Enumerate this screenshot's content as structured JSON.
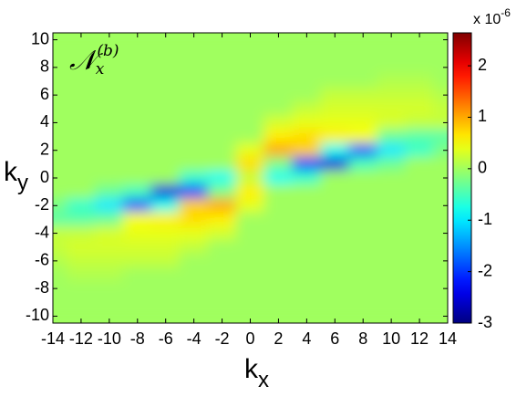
{
  "chart_data": {
    "type": "heatmap",
    "annotation": "𝒩",
    "annotation_sub": "x",
    "annotation_sup": "(b)",
    "xlabel": "k",
    "xlabel_sub": "x",
    "ylabel": "k",
    "ylabel_sub": "y",
    "colorbar_multiplier": "x 10",
    "colorbar_exponent": "-6",
    "colormap": "jet",
    "x": [
      -14,
      -12,
      -10,
      -8,
      -6,
      -4,
      -2,
      0,
      2,
      4,
      6,
      8,
      10,
      12,
      14
    ],
    "y": [
      10,
      9,
      8,
      7,
      6,
      5,
      4,
      3,
      2,
      1,
      0,
      -1,
      -2,
      -3,
      -4,
      -5,
      -6,
      -7,
      -8,
      -9,
      -10
    ],
    "z": [
      [
        0,
        0,
        0,
        0,
        0,
        0,
        0,
        0,
        0,
        0,
        0,
        0,
        0,
        0,
        0
      ],
      [
        0,
        0,
        0,
        0,
        0,
        0,
        0,
        0,
        0,
        0,
        0,
        0,
        0,
        0,
        0
      ],
      [
        0,
        0,
        0,
        0,
        0,
        0,
        0,
        0,
        0,
        0,
        0,
        0,
        0,
        0,
        0
      ],
      [
        0,
        0,
        0,
        0,
        0,
        0,
        0,
        0,
        0,
        0,
        0,
        0,
        0.1,
        0.1,
        0
      ],
      [
        0,
        0,
        0,
        0,
        0,
        0,
        0,
        0,
        0,
        0,
        0.2,
        0.2,
        0.2,
        0.2,
        0.1
      ],
      [
        0,
        0,
        0,
        0,
        0,
        0,
        0,
        0,
        0,
        0.2,
        0.3,
        0.3,
        0.3,
        0.3,
        0.2
      ],
      [
        0,
        0,
        0,
        0,
        0,
        0,
        0,
        0,
        0.3,
        0.4,
        0.4,
        0.4,
        0.3,
        0.2,
        0.2
      ],
      [
        0,
        0,
        0,
        0,
        0,
        0,
        0,
        0,
        0.6,
        0.7,
        0.6,
        0.5,
        -0.3,
        -0.4,
        -0.4
      ],
      [
        0,
        0,
        0,
        0,
        0,
        0,
        0,
        0.4,
        1.0,
        0.8,
        -0.8,
        -1.8,
        -1.0,
        -0.6,
        -0.2
      ],
      [
        0,
        0,
        0,
        0,
        0,
        0,
        0,
        0.7,
        -0.2,
        -2.0,
        -2.5,
        -0.5,
        -0.3,
        0,
        0
      ],
      [
        0,
        0,
        0,
        0,
        0,
        -0.6,
        -0.8,
        0.2,
        -0.8,
        -0.6,
        0,
        0,
        0,
        0,
        0
      ],
      [
        0,
        0,
        -0.3,
        -0.5,
        -2.5,
        -2.0,
        -0.2,
        0.6,
        0,
        0,
        0,
        0,
        0,
        0,
        0
      ],
      [
        -0.2,
        -0.6,
        -1.0,
        -1.8,
        -0.8,
        0.8,
        1.0,
        0.4,
        0,
        0,
        0,
        0,
        0,
        0,
        0
      ],
      [
        -0.4,
        -0.4,
        -0.3,
        0.5,
        0.6,
        0.7,
        0.6,
        0,
        0,
        0,
        0,
        0,
        0,
        0,
        0
      ],
      [
        0.2,
        0.2,
        0.3,
        0.4,
        0.4,
        0.4,
        0.3,
        0,
        0,
        0,
        0,
        0,
        0,
        0,
        0
      ],
      [
        0.2,
        0.3,
        0.3,
        0.3,
        0.3,
        0.2,
        0,
        0,
        0,
        0,
        0,
        0,
        0,
        0,
        0
      ],
      [
        0.1,
        0.2,
        0.2,
        0.2,
        0.2,
        0,
        0,
        0,
        0,
        0,
        0,
        0,
        0,
        0,
        0
      ],
      [
        0,
        0.1,
        0.1,
        0,
        0,
        0,
        0,
        0,
        0,
        0,
        0,
        0,
        0,
        0,
        0
      ],
      [
        0,
        0,
        0,
        0,
        0,
        0,
        0,
        0,
        0,
        0,
        0,
        0,
        0,
        0,
        0
      ],
      [
        0,
        0,
        0,
        0,
        0,
        0,
        0,
        0,
        0,
        0,
        0,
        0,
        0,
        0,
        0
      ],
      [
        0,
        0,
        0,
        0,
        0,
        0,
        0,
        0,
        0,
        0,
        0,
        0,
        0,
        0,
        0
      ]
    ],
    "xlim": [
      -14,
      14
    ],
    "ylim": [
      -10.5,
      10.5
    ],
    "xticks": [
      -14,
      -12,
      -10,
      -8,
      -6,
      -4,
      -2,
      0,
      2,
      4,
      6,
      8,
      10,
      12,
      14
    ],
    "yticks": [
      -10,
      -8,
      -6,
      -4,
      -2,
      0,
      2,
      4,
      6,
      8,
      10
    ],
    "clim": [
      -3,
      2.64
    ],
    "cticks": [
      -3,
      -2,
      -1,
      0,
      1,
      2
    ]
  }
}
